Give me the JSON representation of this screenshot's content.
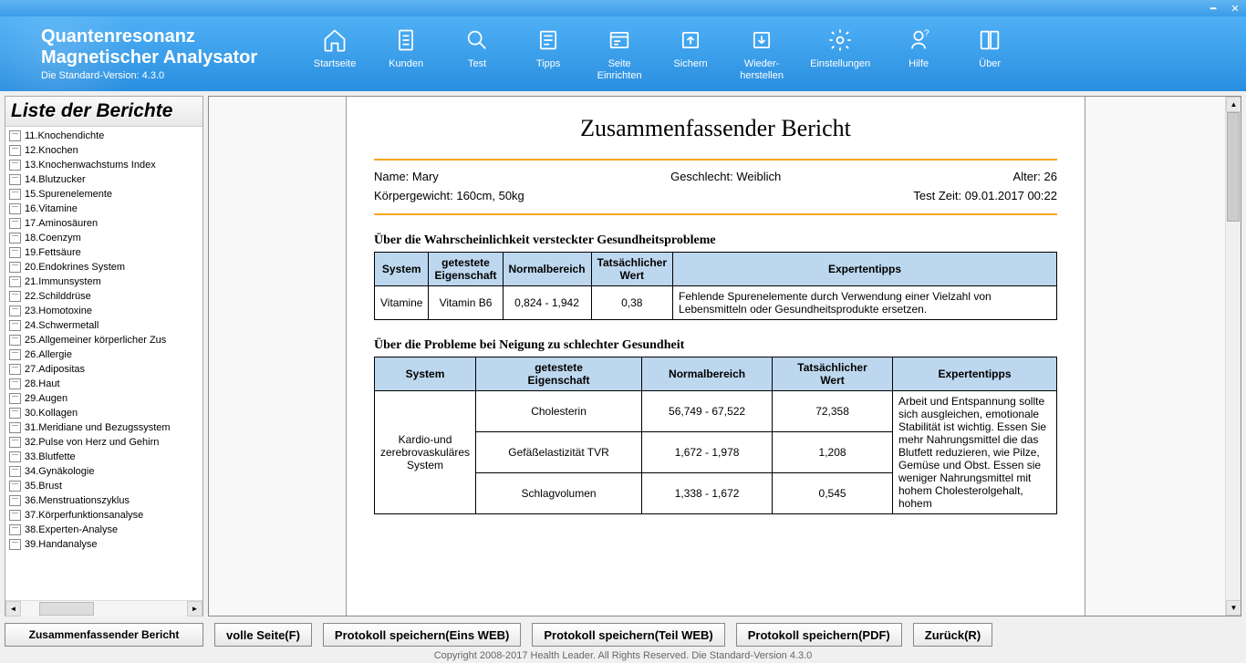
{
  "app": {
    "title1": "Quantenresonanz",
    "title2": "Magnetischer Analysator",
    "version_label": "Die Standard-Version: 4.3.0"
  },
  "toolbar": [
    {
      "id": "home",
      "label": "Startseite"
    },
    {
      "id": "customers",
      "label": "Kunden"
    },
    {
      "id": "test",
      "label": "Test"
    },
    {
      "id": "tips",
      "label": "Tipps"
    },
    {
      "id": "page-setup",
      "label": "Seite\nEinrichten"
    },
    {
      "id": "backup",
      "label": "Sichern"
    },
    {
      "id": "restore",
      "label": "Wieder-\nherstellen"
    },
    {
      "id": "settings",
      "label": "Einstellungen"
    },
    {
      "id": "help",
      "label": "Hilfe"
    },
    {
      "id": "about",
      "label": "Über"
    }
  ],
  "sidebar": {
    "title": "Liste der Berichte",
    "items": [
      "11.Knochendichte",
      "12.Knochen",
      "13.Knochenwachstums Index",
      "14.Blutzucker",
      "15.Spurenelemente",
      "16.Vitamine",
      "17.Aminosäuren",
      "18.Coenzym",
      "19.Fettsäure",
      "20.Endokrines System",
      "21.Immunsystem",
      "22.Schilddrüse",
      "23.Homotoxine",
      "24.Schwermetall",
      "25.Allgemeiner körperlicher Zus",
      "26.Allergie",
      "27.Adipositas",
      "28.Haut",
      "29.Augen",
      "30.Kollagen",
      "31.Meridiane und Bezugssystem",
      "32.Pulse von Herz und Gehirn",
      "33.Blutfette",
      "34.Gynäkologie",
      "35.Brust",
      "36.Menstruationszyklus",
      "37.Körperfunktionsanalyse",
      "38.Experten-Analyse",
      "39.Handanalyse"
    ]
  },
  "report": {
    "title": "Zusammenfassender Bericht",
    "meta": {
      "name_label": "Name:",
      "name": "Mary",
      "gender_label": "Geschlecht:",
      "gender": "Weiblich",
      "age_label": "Alter:",
      "age": "26",
      "body_label": "Körpergewicht:",
      "body": "160cm, 50kg",
      "testtime_label": "Test Zeit:",
      "testtime": "09.01.2017 00:22"
    },
    "section1": {
      "heading": "Über die Wahrscheinlichkeit versteckter Gesundheitsprobleme",
      "columns": [
        "System",
        "getestete Eigenschaft",
        "Normalbereich",
        "Tatsächlicher Wert",
        "Expertentipps"
      ],
      "rows": [
        {
          "system": "Vitamine",
          "prop": "Vitamin B6",
          "range": "0,824 - 1,942",
          "value": "0,38",
          "tips": "Fehlende Spurenelemente durch Verwendung einer Vielzahl von Lebensmitteln oder Gesundheitsprodukte ersetzen."
        }
      ]
    },
    "section2": {
      "heading": "Über die Probleme bei Neigung zu schlechter Gesundheit",
      "columns": [
        "System",
        "getestete Eigenschaft",
        "Normalbereich",
        "Tatsächlicher Wert",
        "Expertentipps"
      ],
      "system": "Kardio-und zerebrovaskuläres System",
      "rows": [
        {
          "prop": "Cholesterin",
          "range": "56,749 - 67,522",
          "value": "72,358"
        },
        {
          "prop": "Gefäßelastizität TVR",
          "range": "1,672 - 1,978",
          "value": "1,208"
        },
        {
          "prop": "Schlagvolumen",
          "range": "1,338 - 1,672",
          "value": "0,545"
        }
      ],
      "tips": "Arbeit und Entspannung sollte sich ausgleichen, emotionale Stabilität ist wichtig. Essen Sie mehr Nahrungsmittel die das Blutfett reduzieren, wie Pilze, Gemüse und Obst. Essen sie weniger Nahrungsmittel mit hohem Cholesterolgehalt, hohem"
    }
  },
  "bottom_buttons": {
    "summary": "Zusammenfassender Bericht",
    "fullpage": "volle Seite(F)",
    "save_one": "Protokoll speichern(Eins WEB)",
    "save_part": "Protokoll speichern(Teil WEB)",
    "save_pdf": "Protokoll speichern(PDF)",
    "back": "Zurück(R)"
  },
  "footer": "Copyright 2008-2017 Health Leader. All Rights Reserved.  Die Standard-Version 4.3.0",
  "colors": {
    "header_bg": "#3a9ce8",
    "table_header": "#bdd7ee",
    "hr": "#f5a623"
  }
}
